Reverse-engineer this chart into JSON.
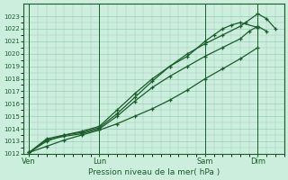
{
  "bg_color": "#cceedd",
  "grid_color": "#99ccbb",
  "line_color": "#1a5c2a",
  "xlabel": "Pression niveau de la mer( hPa )",
  "ylim": [
    1012,
    1024
  ],
  "yticks": [
    1012,
    1013,
    1014,
    1015,
    1016,
    1017,
    1018,
    1019,
    1020,
    1021,
    1022,
    1023
  ],
  "xtick_labels": [
    "Ven",
    "Lun",
    "Sam",
    "Dim"
  ],
  "xtick_positions": [
    0,
    4,
    10,
    13
  ],
  "xlim": [
    -0.3,
    14.5
  ],
  "lines": [
    {
      "x": [
        0,
        1,
        2,
        3,
        4,
        5,
        6,
        7,
        8,
        9,
        10,
        11,
        12,
        13
      ],
      "y": [
        1012.1,
        1012.6,
        1013.1,
        1013.5,
        1013.9,
        1014.4,
        1015.0,
        1015.6,
        1016.3,
        1017.1,
        1018.0,
        1018.8,
        1019.6,
        1020.5
      ]
    },
    {
      "x": [
        0,
        1,
        2,
        3,
        4,
        5,
        6,
        7,
        8,
        9,
        10,
        10.5,
        11,
        11.5,
        12,
        13
      ],
      "y": [
        1012.1,
        1013.0,
        1013.5,
        1013.8,
        1014.2,
        1015.5,
        1016.8,
        1018.0,
        1019.0,
        1019.8,
        1021.0,
        1021.5,
        1022.0,
        1022.3,
        1022.5,
        1022.1
      ]
    },
    {
      "x": [
        0,
        1,
        2,
        3,
        4,
        5,
        6,
        7,
        8,
        9,
        10,
        11,
        12,
        12.5,
        13,
        13.5
      ],
      "y": [
        1012.1,
        1013.1,
        1013.4,
        1013.6,
        1014.0,
        1015.0,
        1016.2,
        1017.3,
        1018.2,
        1019.0,
        1019.8,
        1020.5,
        1021.2,
        1021.8,
        1022.2,
        1021.8
      ]
    },
    {
      "x": [
        0,
        1,
        2,
        3,
        4,
        5,
        6,
        7,
        8,
        9,
        10,
        11,
        12,
        12.3,
        13,
        13.5,
        14
      ],
      "y": [
        1012.1,
        1013.2,
        1013.5,
        1013.7,
        1014.1,
        1015.2,
        1016.5,
        1017.8,
        1019.0,
        1020.0,
        1020.8,
        1021.5,
        1022.2,
        1022.5,
        1023.2,
        1022.8,
        1022.0
      ]
    }
  ]
}
